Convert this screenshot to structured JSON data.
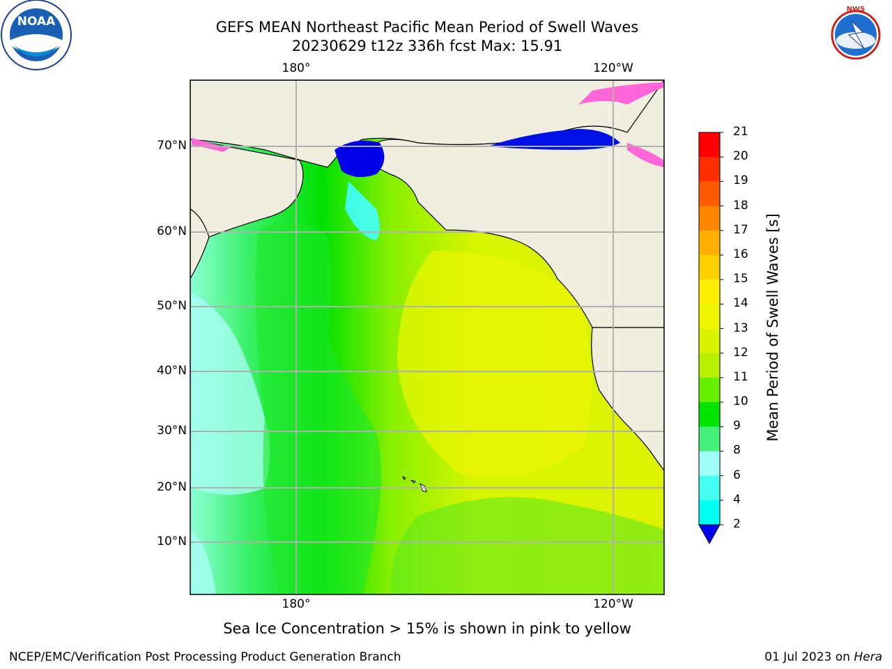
{
  "header": {
    "title_line1": "GEFS MEAN Northeast Pacific Mean Period of Swell Waves",
    "title_line2": "20230629 t12z 336h fcst   Max: 15.91"
  },
  "logos": {
    "left": {
      "icon": "noaa-logo",
      "text": "NOAA"
    },
    "right": {
      "icon": "nws-logo",
      "text": "NATIONAL WEATHER SERVICE"
    }
  },
  "map": {
    "lat_labels": [
      "70°N",
      "60°N",
      "50°N",
      "40°N",
      "30°N",
      "20°N",
      "10°N"
    ],
    "lon_labels_top": [
      "180°",
      "120°W"
    ],
    "lon_labels_bottom": [
      "180°",
      "120°W"
    ],
    "colors": {
      "land": "#efeedf",
      "grid": "#b0b0b0"
    }
  },
  "colorbar": {
    "label": "Mean Period of Swell Waves [s]",
    "ticks": [
      "21",
      "20",
      "19",
      "18",
      "17",
      "16",
      "15",
      "14",
      "13",
      "12",
      "11",
      "10",
      "9",
      "8",
      "6",
      "4",
      "2"
    ],
    "colors": [
      "#ff0000",
      "#ff2e00",
      "#ff5a00",
      "#ff8600",
      "#ffb000",
      "#ffd000",
      "#ffee00",
      "#f0f500",
      "#d8f200",
      "#b8f000",
      "#66f000",
      "#00e600",
      "#44f07a",
      "#a0fff8",
      "#44fff2",
      "#00fff0",
      "#00e0ff",
      "#0070ff"
    ],
    "under_color": "#0000f0"
  },
  "caption": "Sea Ice Concentration > 15% is shown in pink to yellow",
  "footer": {
    "left": "NCEP/EMC/Verification Post Processing Product Generation Branch",
    "right_date": "01 Jul 2023 on ",
    "right_host": "Hera"
  }
}
